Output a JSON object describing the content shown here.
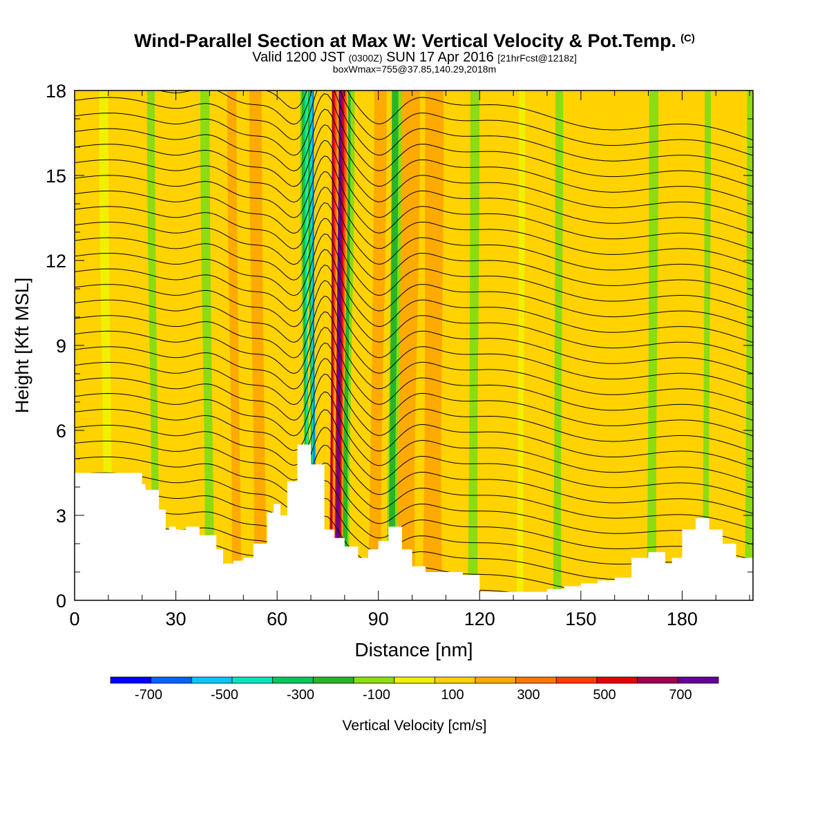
{
  "title": {
    "main": "Wind-Parallel Section at Max W: Vertical Velocity & Pot.Temp.",
    "copyright": "(C)",
    "valid_prefix": "Valid 1200 JST",
    "valid_utc": "(0300Z)",
    "valid_date": "SUN 17 Apr 2016",
    "forecast": "[21hrFcst@1218z]",
    "box": "boxWmax=755@37.85,140.29,2018m"
  },
  "chart_data": {
    "type": "heatmap",
    "xlabel": "Distance [nm]",
    "ylabel": "Height [Kft MSL]",
    "xlim": [
      0,
      201
    ],
    "ylim": [
      0,
      18
    ],
    "x_ticks": [
      0,
      30,
      60,
      90,
      120,
      150,
      180
    ],
    "y_ticks": [
      0,
      3,
      6,
      9,
      12,
      15,
      18
    ],
    "colorbar": {
      "label": "Vertical Velocity [cm/s]",
      "ticks": [
        -700,
        -500,
        -300,
        -100,
        100,
        300,
        500,
        700
      ],
      "bounds": [
        -800,
        -700,
        -600,
        -500,
        -400,
        -300,
        -200,
        -100,
        0,
        100,
        200,
        300,
        400,
        500,
        600,
        700,
        800
      ],
      "colors": [
        "#0000ff",
        "#0064ff",
        "#00c8ff",
        "#00e6be",
        "#00c85a",
        "#28b428",
        "#8cdc14",
        "#f0f000",
        "#ffd200",
        "#ffaa00",
        "#ff7800",
        "#ff3c00",
        "#e60000",
        "#a00050",
        "#640096"
      ]
    },
    "terrain": {
      "x": [
        0,
        10,
        15,
        20,
        21,
        25,
        27,
        28,
        30,
        33,
        37,
        42,
        44,
        47,
        50,
        53,
        57,
        59,
        61,
        63,
        66,
        67,
        70,
        74,
        77,
        80,
        84,
        87,
        90,
        93,
        97,
        100,
        104,
        107,
        110,
        115,
        120,
        124,
        130,
        140,
        145,
        150,
        155,
        160,
        165,
        170,
        175,
        177,
        180,
        184,
        188,
        192,
        196,
        201
      ],
      "y": [
        4.5,
        4.5,
        4.5,
        4.1,
        3.9,
        3.2,
        2.5,
        2.6,
        2.5,
        2.6,
        2.3,
        1.8,
        1.3,
        1.4,
        1.5,
        2.0,
        3.1,
        3.4,
        3.0,
        4.2,
        5.5,
        5.5,
        4.8,
        2.5,
        2.2,
        1.9,
        1.5,
        1.8,
        2.1,
        2.6,
        1.8,
        1.2,
        1.0,
        1.0,
        1.0,
        0.9,
        0.3,
        0.3,
        0.3,
        0.4,
        0.5,
        0.6,
        0.7,
        0.8,
        1.5,
        1.7,
        1.3,
        1.5,
        2.5,
        2.9,
        2.5,
        2.0,
        1.5,
        1.3
      ]
    },
    "updraft_columns": [
      {
        "x": 78,
        "w": 3.2,
        "value": 755
      },
      {
        "x": 76,
        "w": 1.5,
        "value": 620
      },
      {
        "x": 98,
        "w": 6,
        "value": 160
      },
      {
        "x": 106,
        "w": 6,
        "value": 180
      },
      {
        "x": 55,
        "w": 4,
        "value": 150
      },
      {
        "x": 48,
        "w": 3,
        "value": 130
      },
      {
        "x": 89,
        "w": 4,
        "value": 140
      }
    ],
    "downdraft_columns": [
      {
        "x": 71,
        "w": 1.8,
        "value": -720
      },
      {
        "x": 69,
        "w": 1.8,
        "value": -450
      },
      {
        "x": 80,
        "w": 3,
        "value": -330
      },
      {
        "x": 94,
        "w": 3.5,
        "value": -300
      },
      {
        "x": 40,
        "w": 3,
        "value": -220
      },
      {
        "x": 24,
        "w": 2.5,
        "value": -150
      },
      {
        "x": 118,
        "w": 3,
        "value": -130
      },
      {
        "x": 143,
        "w": 2.5,
        "value": -140
      },
      {
        "x": 171,
        "w": 3,
        "value": -130
      },
      {
        "x": 187,
        "w": 2,
        "value": -140
      },
      {
        "x": 200,
        "w": 3,
        "value": -110
      },
      {
        "x": 132,
        "w": 2,
        "value": -100
      },
      {
        "x": 10,
        "w": 3,
        "value": -100
      }
    ],
    "isentropes": {
      "count": 34,
      "bottom_km_kft": 0.6,
      "spacing_kft": 0.55
    }
  }
}
